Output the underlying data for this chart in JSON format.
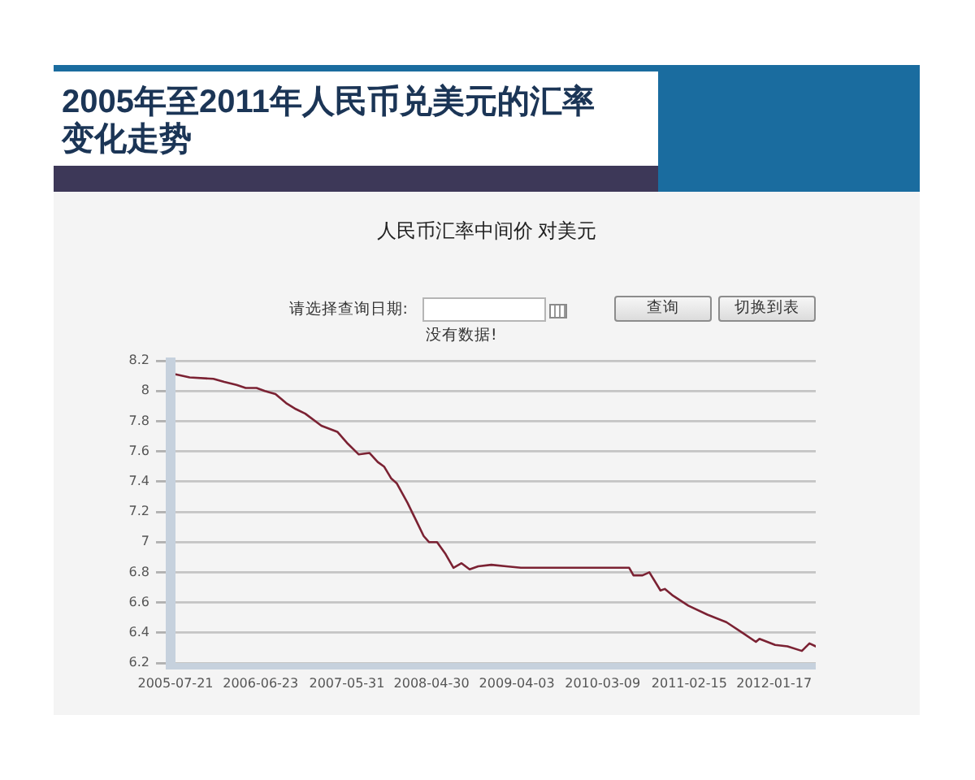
{
  "chart_data": {
    "type": "line",
    "title": "2005年至2011年人民币兑美元的汇率变化走势",
    "subtitle": "人民币汇率中间价 对美元",
    "annotations": [
      "请选择查询日期:",
      "查询",
      "切换到表",
      "没有数据!"
    ],
    "x": [
      "2005-07-22",
      "2005-09-15",
      "2005-12-18",
      "2006-01-30",
      "2006-03-20",
      "2006-04-25",
      "2006-06-07",
      "2006-07-10",
      "2006-08-21",
      "2006-10-02",
      "2006-11-10",
      "2006-12-17",
      "2007-02-19",
      "2007-04-23",
      "2007-06-04",
      "2007-07-17",
      "2007-08-28",
      "2007-09-30",
      "2007-10-25",
      "2007-11-23",
      "2007-12-14",
      "2008-01-26",
      "2008-03-01",
      "2008-03-30",
      "2008-04-20",
      "2008-05-22",
      "2008-06-25",
      "2008-07-26",
      "2008-08-27",
      "2008-09-28",
      "2008-11-01",
      "2008-12-23",
      "2009-02-20",
      "2009-04-19",
      "2009-07-01",
      "2009-10-29",
      "2010-03-01",
      "2010-06-22",
      "2010-07-09",
      "2010-08-14",
      "2010-09-10",
      "2010-10-24",
      "2010-11-10",
      "2010-12-09",
      "2011-02-11",
      "2011-04-28",
      "2011-07-12",
      "2011-09-14",
      "2011-11-06",
      "2011-11-20",
      "2012-01-21",
      "2012-03-10",
      "2012-05-06",
      "2012-06-05",
      "2012-06-30"
    ],
    "values": [
      8.11,
      8.09,
      8.08,
      8.06,
      8.04,
      8.02,
      8.02,
      8.0,
      7.98,
      7.92,
      7.88,
      7.85,
      7.77,
      7.73,
      7.65,
      7.58,
      7.59,
      7.53,
      7.5,
      7.42,
      7.39,
      7.26,
      7.14,
      7.04,
      7.0,
      7.0,
      6.92,
      6.83,
      6.86,
      6.82,
      6.84,
      6.85,
      6.84,
      6.83,
      6.83,
      6.83,
      6.83,
      6.83,
      6.78,
      6.78,
      6.8,
      6.68,
      6.69,
      6.65,
      6.58,
      6.52,
      6.47,
      6.4,
      6.34,
      6.36,
      6.32,
      6.31,
      6.28,
      6.33,
      6.31
    ],
    "color": "#7b2233",
    "xlim": [
      "2005-07-21",
      "2012-06-30"
    ],
    "xticks": [
      "2005-07-21",
      "2006-06-23",
      "2007-05-31",
      "2008-04-30",
      "2009-04-03",
      "2010-03-09",
      "2011-02-15",
      "2012-01-17"
    ],
    "ylim": [
      6.2,
      8.2
    ],
    "yticks": [
      6.2,
      6.4,
      6.6,
      6.8,
      7,
      7.2,
      7.4,
      7.6,
      7.8,
      8,
      8.2
    ],
    "grid": "y",
    "marker": "none"
  }
}
